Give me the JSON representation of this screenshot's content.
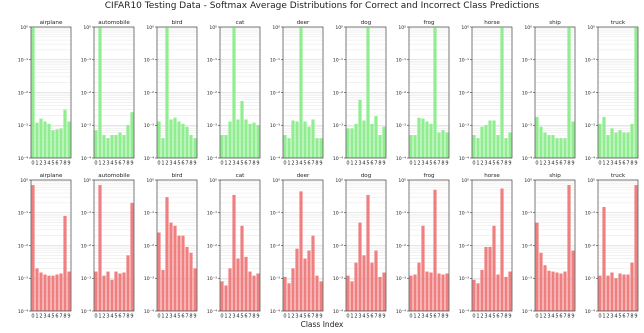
{
  "figure": {
    "title": "CIFAR10 Testing Data - Softmax Average Distributions for Correct and Incorrect Class Predictions",
    "xlabel": "Class Index",
    "colors": {
      "correct": "#90ee90",
      "incorrect": "#f08080",
      "edge": "#666666"
    }
  },
  "chart_data": [
    {
      "type": "bar",
      "title": "airplane",
      "row": "correct",
      "yscale": "log",
      "ylim": [
        0.0001,
        1
      ],
      "yticks": [
        "10⁻⁴",
        "10⁻³",
        "10⁻²",
        "10⁻¹",
        "10⁰"
      ],
      "categories": [
        "0",
        "1",
        "2",
        "3",
        "4",
        "5",
        "6",
        "7",
        "8",
        "9"
      ],
      "values": [
        0.95,
        0.0012,
        0.0016,
        0.0013,
        0.0011,
        0.0007,
        0.00075,
        0.0008,
        0.003,
        0.0013
      ]
    },
    {
      "type": "bar",
      "title": "automobile",
      "row": "correct",
      "yscale": "log",
      "ylim": [
        0.0001,
        1
      ],
      "yticks": [
        "10⁻⁴",
        "10⁻³",
        "10⁻²",
        "10⁻¹",
        "10⁰"
      ],
      "categories": [
        "0",
        "1",
        "2",
        "3",
        "4",
        "5",
        "6",
        "7",
        "8",
        "9"
      ],
      "values": [
        0.0007,
        0.95,
        0.0005,
        0.0004,
        0.0005,
        0.0005,
        0.0006,
        0.0005,
        0.001,
        0.0025
      ]
    },
    {
      "type": "bar",
      "title": "bird",
      "row": "correct",
      "yscale": "log",
      "ylim": [
        0.0001,
        1
      ],
      "yticks": [
        "10⁻⁴",
        "10⁻³",
        "10⁻²",
        "10⁻¹",
        "10⁰"
      ],
      "categories": [
        "0",
        "1",
        "2",
        "3",
        "4",
        "5",
        "6",
        "7",
        "8",
        "9"
      ],
      "values": [
        0.0013,
        0.0004,
        0.95,
        0.0015,
        0.0017,
        0.0013,
        0.0011,
        0.0009,
        0.0005,
        0.0004
      ]
    },
    {
      "type": "bar",
      "title": "cat",
      "row": "correct",
      "yscale": "log",
      "ylim": [
        0.0001,
        1
      ],
      "yticks": [
        "10⁻⁴",
        "10⁻³",
        "10⁻²",
        "10⁻¹",
        "10⁰"
      ],
      "categories": [
        "0",
        "1",
        "2",
        "3",
        "4",
        "5",
        "6",
        "7",
        "8",
        "9"
      ],
      "values": [
        0.0005,
        0.0005,
        0.0013,
        0.95,
        0.0015,
        0.0055,
        0.0015,
        0.0011,
        0.0012,
        0.001
      ]
    },
    {
      "type": "bar",
      "title": "deer",
      "row": "correct",
      "yscale": "log",
      "ylim": [
        0.0001,
        1
      ],
      "yticks": [
        "10⁻⁴",
        "10⁻³",
        "10⁻²",
        "10⁻¹",
        "10⁰"
      ],
      "categories": [
        "0",
        "1",
        "2",
        "3",
        "4",
        "5",
        "6",
        "7",
        "8",
        "9"
      ],
      "values": [
        0.0005,
        0.0004,
        0.0014,
        0.0013,
        0.95,
        0.0013,
        0.0009,
        0.0015,
        0.0004,
        0.0004
      ]
    },
    {
      "type": "bar",
      "title": "dog",
      "row": "correct",
      "yscale": "log",
      "ylim": [
        0.0001,
        1
      ],
      "yticks": [
        "10⁻⁴",
        "10⁻³",
        "10⁻²",
        "10⁻¹",
        "10⁰"
      ],
      "categories": [
        "0",
        "1",
        "2",
        "3",
        "4",
        "5",
        "6",
        "7",
        "8",
        "9"
      ],
      "values": [
        0.0008,
        0.0008,
        0.0011,
        0.006,
        0.0014,
        0.95,
        0.0011,
        0.0019,
        0.0005,
        0.0009
      ]
    },
    {
      "type": "bar",
      "title": "frog",
      "row": "correct",
      "yscale": "log",
      "ylim": [
        0.0001,
        1
      ],
      "yticks": [
        "10⁻⁴",
        "10⁻³",
        "10⁻²",
        "10⁻¹",
        "10⁰"
      ],
      "categories": [
        "0",
        "1",
        "2",
        "3",
        "4",
        "5",
        "6",
        "7",
        "8",
        "9"
      ],
      "values": [
        0.0005,
        0.0005,
        0.0017,
        0.0016,
        0.0013,
        0.0011,
        0.95,
        0.0006,
        0.0007,
        0.0006
      ]
    },
    {
      "type": "bar",
      "title": "horse",
      "row": "correct",
      "yscale": "log",
      "ylim": [
        0.0001,
        1
      ],
      "yticks": [
        "10⁻⁴",
        "10⁻³",
        "10⁻²",
        "10⁻¹",
        "10⁰"
      ],
      "categories": [
        "0",
        "1",
        "2",
        "3",
        "4",
        "5",
        "6",
        "7",
        "8",
        "9"
      ],
      "values": [
        0.0005,
        0.0004,
        0.0009,
        0.001,
        0.0014,
        0.0014,
        0.0005,
        0.95,
        0.0004,
        0.0006
      ]
    },
    {
      "type": "bar",
      "title": "ship",
      "row": "correct",
      "yscale": "log",
      "ylim": [
        0.0001,
        1
      ],
      "yticks": [
        "10⁻⁴",
        "10⁻³",
        "10⁻²",
        "10⁻¹",
        "10⁰"
      ],
      "categories": [
        "0",
        "1",
        "2",
        "3",
        "4",
        "5",
        "6",
        "7",
        "8",
        "9"
      ],
      "values": [
        0.0018,
        0.0009,
        0.0006,
        0.0005,
        0.0005,
        0.0004,
        0.0004,
        0.0004,
        0.95,
        0.0013
      ]
    },
    {
      "type": "bar",
      "title": "truck",
      "row": "correct",
      "yscale": "log",
      "ylim": [
        0.0001,
        1
      ],
      "yticks": [
        "10⁻⁴",
        "10⁻³",
        "10⁻²",
        "10⁻¹",
        "10⁰"
      ],
      "categories": [
        "0",
        "1",
        "2",
        "3",
        "4",
        "5",
        "6",
        "7",
        "8",
        "9"
      ],
      "values": [
        0.0011,
        0.0018,
        0.0005,
        0.0008,
        0.0006,
        0.0007,
        0.0006,
        0.0006,
        0.0011,
        0.95
      ]
    },
    {
      "type": "bar",
      "title": "airplane",
      "row": "incorrect",
      "yscale": "log",
      "ylim": [
        0.0001,
        1
      ],
      "yticks": [
        "10⁻⁴",
        "10⁻³",
        "10⁻²",
        "10⁻¹",
        "10⁰"
      ],
      "categories": [
        "0",
        "1",
        "2",
        "3",
        "4",
        "5",
        "6",
        "7",
        "8",
        "9"
      ],
      "values": [
        0.7,
        0.002,
        0.0015,
        0.0013,
        0.0012,
        0.0012,
        0.0013,
        0.0014,
        0.08,
        0.0016
      ]
    },
    {
      "type": "bar",
      "title": "automobile",
      "row": "incorrect",
      "yscale": "log",
      "ylim": [
        0.0001,
        1
      ],
      "yticks": [
        "10⁻⁴",
        "10⁻³",
        "10⁻²",
        "10⁻¹",
        "10⁰"
      ],
      "categories": [
        "0",
        "1",
        "2",
        "3",
        "4",
        "5",
        "6",
        "7",
        "8",
        "9"
      ],
      "values": [
        0.0016,
        0.7,
        0.0012,
        0.0016,
        0.0009,
        0.0016,
        0.0014,
        0.0015,
        0.005,
        0.2
      ]
    },
    {
      "type": "bar",
      "title": "bird",
      "row": "incorrect",
      "yscale": "log",
      "ylim": [
        0.0001,
        1
      ],
      "yticks": [
        "10⁻⁴",
        "10⁻³",
        "10⁻²",
        "10⁻¹",
        "10⁰"
      ],
      "categories": [
        "0",
        "1",
        "2",
        "3",
        "4",
        "5",
        "6",
        "7",
        "8",
        "9"
      ],
      "values": [
        0.025,
        0.0018,
        0.3,
        0.05,
        0.04,
        0.02,
        0.02,
        0.009,
        0.006,
        0.002
      ]
    },
    {
      "type": "bar",
      "title": "cat",
      "row": "incorrect",
      "yscale": "log",
      "ylim": [
        0.0001,
        1
      ],
      "yticks": [
        "10⁻⁴",
        "10⁻³",
        "10⁻²",
        "10⁻¹",
        "10⁰"
      ],
      "categories": [
        "0",
        "1",
        "2",
        "3",
        "4",
        "5",
        "6",
        "7",
        "8",
        "9"
      ],
      "values": [
        0.0008,
        0.0006,
        0.002,
        0.35,
        0.004,
        0.04,
        0.0045,
        0.0016,
        0.0012,
        0.0014
      ]
    },
    {
      "type": "bar",
      "title": "deer",
      "row": "incorrect",
      "yscale": "log",
      "ylim": [
        0.0001,
        1
      ],
      "yticks": [
        "10⁻⁴",
        "10⁻³",
        "10⁻²",
        "10⁻¹",
        "10⁰"
      ],
      "categories": [
        "0",
        "1",
        "2",
        "3",
        "4",
        "5",
        "6",
        "7",
        "8",
        "9"
      ],
      "values": [
        0.0011,
        0.0007,
        0.002,
        0.008,
        0.45,
        0.004,
        0.007,
        0.02,
        0.0012,
        0.0008
      ]
    },
    {
      "type": "bar",
      "title": "dog",
      "row": "incorrect",
      "yscale": "log",
      "ylim": [
        0.0001,
        1
      ],
      "yticks": [
        "10⁻⁴",
        "10⁻³",
        "10⁻²",
        "10⁻¹",
        "10⁰"
      ],
      "categories": [
        "0",
        "1",
        "2",
        "3",
        "4",
        "5",
        "6",
        "7",
        "8",
        "9"
      ],
      "values": [
        0.0012,
        0.0008,
        0.003,
        0.05,
        0.005,
        0.35,
        0.003,
        0.007,
        0.0011,
        0.0015
      ]
    },
    {
      "type": "bar",
      "title": "frog",
      "row": "incorrect",
      "yscale": "log",
      "ylim": [
        0.0001,
        1
      ],
      "yticks": [
        "10⁻⁴",
        "10⁻³",
        "10⁻²",
        "10⁻¹",
        "10⁰"
      ],
      "categories": [
        "0",
        "1",
        "2",
        "3",
        "4",
        "5",
        "6",
        "7",
        "8",
        "9"
      ],
      "values": [
        0.0012,
        0.0013,
        0.003,
        0.04,
        0.0016,
        0.0015,
        0.5,
        0.0014,
        0.0013,
        0.0014
      ]
    },
    {
      "type": "bar",
      "title": "horse",
      "row": "incorrect",
      "yscale": "log",
      "ylim": [
        0.0001,
        1
      ],
      "yticks": [
        "10⁻⁴",
        "10⁻³",
        "10⁻²",
        "10⁻¹",
        "10⁰"
      ],
      "categories": [
        "0",
        "1",
        "2",
        "3",
        "4",
        "5",
        "6",
        "7",
        "8",
        "9"
      ],
      "values": [
        0.0009,
        0.0007,
        0.0018,
        0.009,
        0.009,
        0.04,
        0.0013,
        0.55,
        0.0011,
        0.0016
      ]
    },
    {
      "type": "bar",
      "title": "ship",
      "row": "incorrect",
      "yscale": "log",
      "ylim": [
        0.0001,
        1
      ],
      "yticks": [
        "10⁻⁴",
        "10⁻³",
        "10⁻²",
        "10⁻¹",
        "10⁰"
      ],
      "categories": [
        "0",
        "1",
        "2",
        "3",
        "4",
        "5",
        "6",
        "7",
        "8",
        "9"
      ],
      "values": [
        0.05,
        0.006,
        0.0025,
        0.0017,
        0.0016,
        0.0015,
        0.0014,
        0.0016,
        0.7,
        0.007
      ]
    },
    {
      "type": "bar",
      "title": "truck",
      "row": "incorrect",
      "yscale": "log",
      "ylim": [
        0.0001,
        1
      ],
      "yticks": [
        "10⁻⁴",
        "10⁻³",
        "10⁻²",
        "10⁻¹",
        "10⁰"
      ],
      "categories": [
        "0",
        "1",
        "2",
        "3",
        "4",
        "5",
        "6",
        "7",
        "8",
        "9"
      ],
      "values": [
        0.0012,
        0.15,
        0.0012,
        0.0015,
        0.001,
        0.0014,
        0.0013,
        0.0013,
        0.003,
        0.7
      ]
    }
  ]
}
